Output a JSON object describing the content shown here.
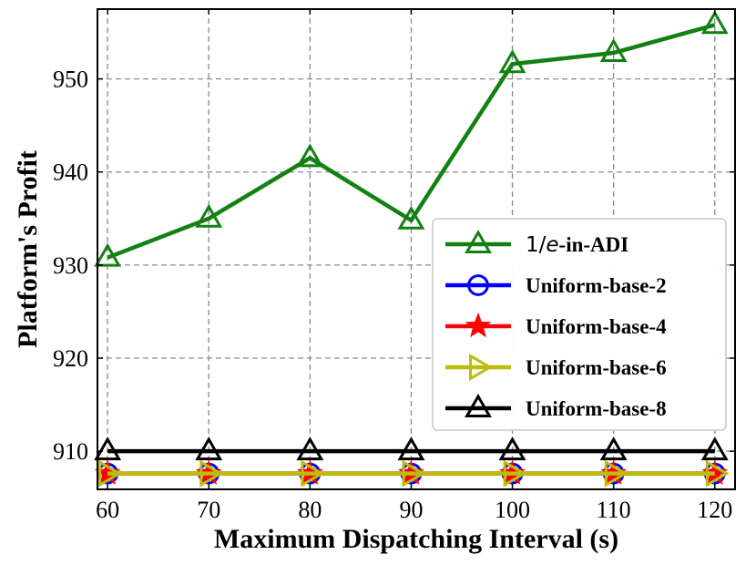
{
  "chart_data": {
    "type": "line",
    "title": "",
    "xlabel": "Maximum Dispatching Interval (s)",
    "ylabel": "Platform's Profit",
    "x": [
      60,
      70,
      80,
      90,
      100,
      110,
      120
    ],
    "xlim": [
      59,
      122
    ],
    "ylim": [
      905.9,
      957.5
    ],
    "xticks": [
      60,
      70,
      80,
      90,
      100,
      110,
      120
    ],
    "yticks": [
      910,
      920,
      930,
      940,
      950
    ],
    "grid": true,
    "legend_position": "center-right",
    "series": [
      {
        "name": "1/e-in-ADI",
        "name_prefix": "1/",
        "name_italic": "e",
        "name_suffix": "-in-ADI",
        "color": "#138013",
        "marker": "triangle-up",
        "values": [
          930.8,
          935.0,
          941.5,
          934.8,
          951.6,
          952.8,
          955.8
        ]
      },
      {
        "name": "Uniform-base-2",
        "color": "#0000ff",
        "marker": "circle",
        "values": [
          907.6,
          907.6,
          907.6,
          907.6,
          907.6,
          907.6,
          907.6
        ]
      },
      {
        "name": "Uniform-base-4",
        "color": "#ff0000",
        "marker": "star",
        "values": [
          907.6,
          907.6,
          907.6,
          907.6,
          907.6,
          907.6,
          907.6
        ]
      },
      {
        "name": "Uniform-base-6",
        "color": "#bcbc0c",
        "marker": "triangle-right",
        "values": [
          907.6,
          907.6,
          907.6,
          907.6,
          907.6,
          907.6,
          907.6
        ]
      },
      {
        "name": "Uniform-base-8",
        "color": "#000000",
        "marker": "triangle-up",
        "values": [
          910.0,
          910.0,
          910.0,
          910.0,
          910.0,
          910.0,
          910.0
        ]
      }
    ]
  }
}
